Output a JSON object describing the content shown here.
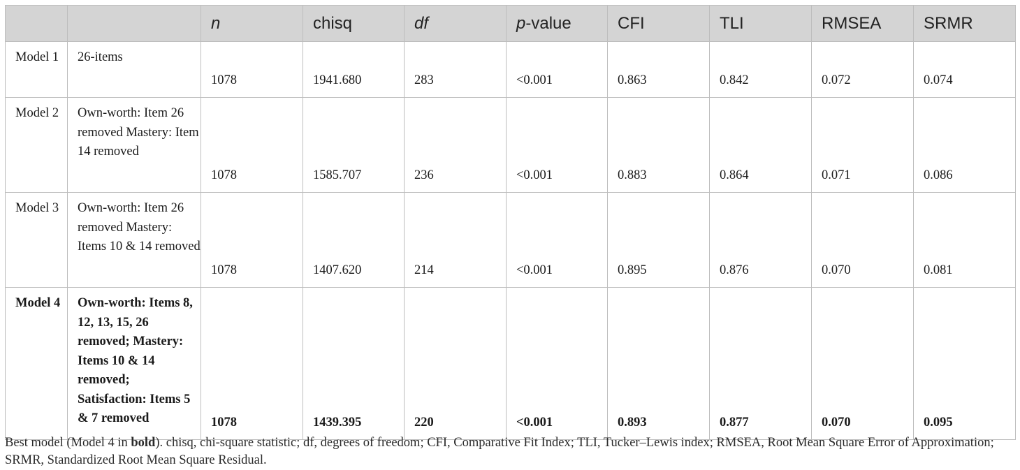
{
  "table": {
    "headers": [
      {
        "text": "",
        "italic": false
      },
      {
        "text": "",
        "italic": false
      },
      {
        "text": "n",
        "italic": true
      },
      {
        "text": "chisq",
        "italic": false
      },
      {
        "text": "df",
        "italic": true
      },
      {
        "text_italic": "p",
        "text": "-value"
      },
      {
        "text": "CFI"
      },
      {
        "text": "TLI"
      },
      {
        "text": "RMSEA"
      },
      {
        "text": "SRMR"
      }
    ],
    "rows": [
      {
        "model": "Model 1",
        "description": "26-items",
        "n": "1078",
        "chisq": "1941.680",
        "df": "283",
        "p_value": "<0.001",
        "cfi": "0.863",
        "tli": "0.842",
        "rmsea": "0.072",
        "srmr": "0.074"
      },
      {
        "model": "Model 2",
        "description": "Own-worth: Item 26 removed Mastery: Item 14 removed",
        "n": "1078",
        "chisq": "1585.707",
        "df": "236",
        "p_value": "<0.001",
        "cfi": "0.883",
        "tli": "0.864",
        "rmsea": "0.071",
        "srmr": "0.086"
      },
      {
        "model": "Model 3",
        "description": "Own-worth: Item 26 removed Mastery: Items 10 & 14 removed",
        "n": "1078",
        "chisq": "1407.620",
        "df": "214",
        "p_value": "<0.001",
        "cfi": "0.895",
        "tli": "0.876",
        "rmsea": "0.070",
        "srmr": "0.081"
      },
      {
        "model": "Model 4",
        "description": "Own-worth: Items 8, 12, 13, 15, 26 removed; Mastery: Items 10 & 14 removed; Satisfaction: Items 5 & 7 removed",
        "n": "1078",
        "chisq": "1439.395",
        "df": "220",
        "p_value": "<0.001",
        "cfi": "0.893",
        "tli": "0.877",
        "rmsea": "0.070",
        "srmr": "0.095"
      }
    ]
  },
  "caption": {
    "part1": "Best model (Model 4 in ",
    "bold": "bold",
    "part2": "). chisq, chi-square statistic; df, degrees of freedom; CFI, Comparative Fit Index; TLI, Tucker–Lewis index; RMSEA, Root Mean Square Error of Approximation; SRMR, Standardized Root Mean Square Residual."
  }
}
